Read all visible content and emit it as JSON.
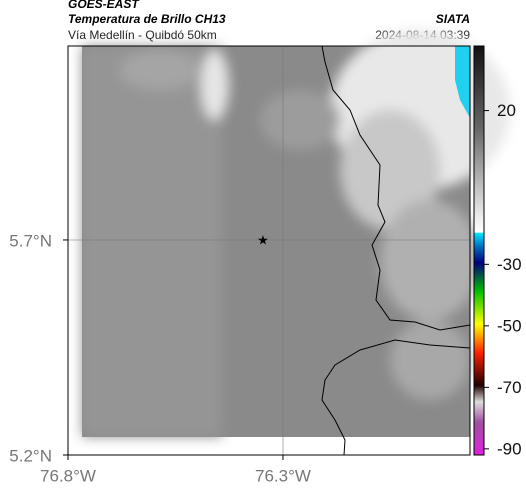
{
  "header": {
    "source": "GOES-EAST",
    "product": "Temperatura de Brillo CH13",
    "org": "SIATA",
    "route": "Vía Medellín - Quibdó 50km",
    "datetime": "2024-08-14 03:39"
  },
  "map": {
    "xlim": [
      -76.8,
      -75.865
    ],
    "ylim": [
      5.2,
      6.151
    ],
    "xticks": [
      {
        "value": -76.8,
        "label": "76.8°W"
      },
      {
        "value": -76.3,
        "label": "76.3°W"
      }
    ],
    "yticks": [
      {
        "value": 5.7,
        "label": "5.7°N"
      },
      {
        "value": 5.2,
        "label": "5.2°N"
      }
    ],
    "colorbar": {
      "lim": [
        -92,
        41
      ],
      "ticks": [
        20,
        -30,
        -50,
        -70,
        -90
      ]
    }
  }
}
